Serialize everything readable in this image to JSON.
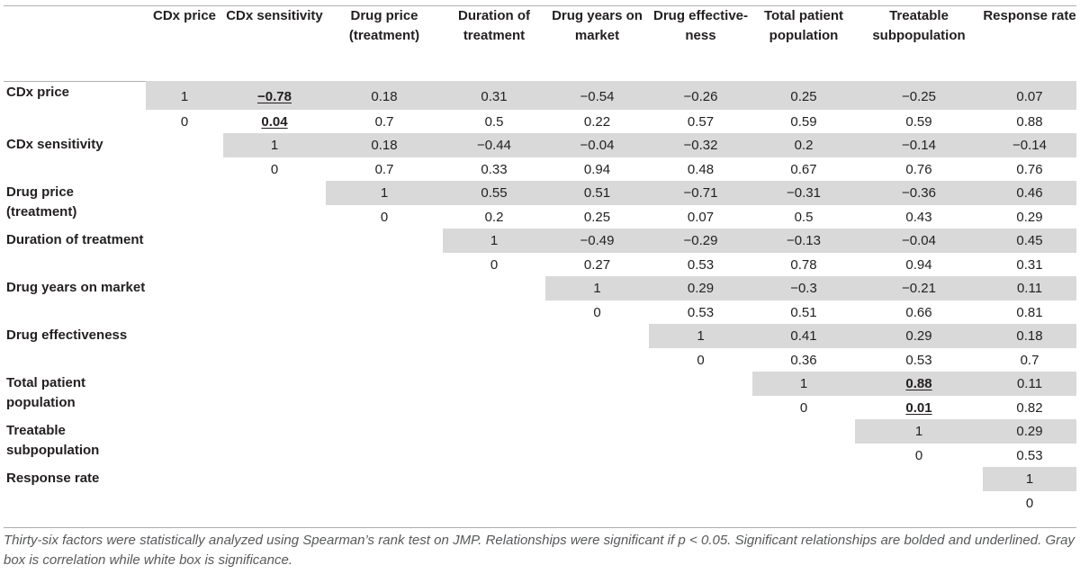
{
  "columns": [
    "CDx price",
    "CDx sensitivity",
    "Drug price (treatment)",
    "Duration of treatment",
    "Drug years on market",
    "Drug effective-ness",
    "Total patient population",
    "Treatable subpopulation",
    "Response rate"
  ],
  "rows": [
    {
      "label": "CDx price",
      "start": 0,
      "corr": [
        "1",
        "−0.78",
        "0.18",
        "0.31",
        "−0.54",
        "−0.26",
        "0.25",
        "−0.25",
        "0.07"
      ],
      "p": [
        "0",
        "0.04",
        "0.7",
        "0.5",
        "0.22",
        "0.57",
        "0.59",
        "0.59",
        "0.88"
      ],
      "significant": [
        1
      ]
    },
    {
      "label": "CDx sensitivity",
      "start": 1,
      "corr": [
        "1",
        "0.18",
        "−0.44",
        "−0.04",
        "−0.32",
        "0.2",
        "−0.14",
        "−0.14"
      ],
      "p": [
        "0",
        "0.7",
        "0.33",
        "0.94",
        "0.48",
        "0.67",
        "0.76",
        "0.76"
      ],
      "significant": []
    },
    {
      "label": "Drug price (treatment)",
      "start": 2,
      "corr": [
        "1",
        "0.55",
        "0.51",
        "−0.71",
        "−0.31",
        "−0.36",
        "0.46"
      ],
      "p": [
        "0",
        "0.2",
        "0.25",
        "0.07",
        "0.5",
        "0.43",
        "0.29"
      ],
      "significant": []
    },
    {
      "label": "Duration of treatment",
      "start": 3,
      "corr": [
        "1",
        "−0.49",
        "−0.29",
        "−0.13",
        "−0.04",
        "0.45"
      ],
      "p": [
        "0",
        "0.27",
        "0.53",
        "0.78",
        "0.94",
        "0.31"
      ],
      "significant": []
    },
    {
      "label": "Drug years on market",
      "start": 4,
      "corr": [
        "1",
        "0.29",
        "−0.3",
        "−0.21",
        "0.11"
      ],
      "p": [
        "0",
        "0.53",
        "0.51",
        "0.66",
        "0.81"
      ],
      "significant": []
    },
    {
      "label": "Drug effectiveness",
      "start": 5,
      "corr": [
        "1",
        "0.41",
        "0.29",
        "0.18"
      ],
      "p": [
        "0",
        "0.36",
        "0.53",
        "0.7"
      ],
      "significant": []
    },
    {
      "label": "Total patient population",
      "start": 6,
      "corr": [
        "1",
        "0.88",
        "0.11"
      ],
      "p": [
        "0",
        "0.01",
        "0.82"
      ],
      "significant": [
        7
      ]
    },
    {
      "label": "Treatable subpopulation",
      "start": 7,
      "corr": [
        "1",
        "0.29"
      ],
      "p": [
        "0",
        "0.53"
      ],
      "significant": []
    },
    {
      "label": "Response rate",
      "start": 8,
      "corr": [
        "1"
      ],
      "p": [
        "0"
      ],
      "significant": []
    }
  ],
  "caption": "Thirty-six factors were statistically analyzed using Spearman’s rank test on JMP. Relationships were significant if p < 0.05. Significant relationships are bolded and underlined. Gray box is correlation while white box is significance."
}
